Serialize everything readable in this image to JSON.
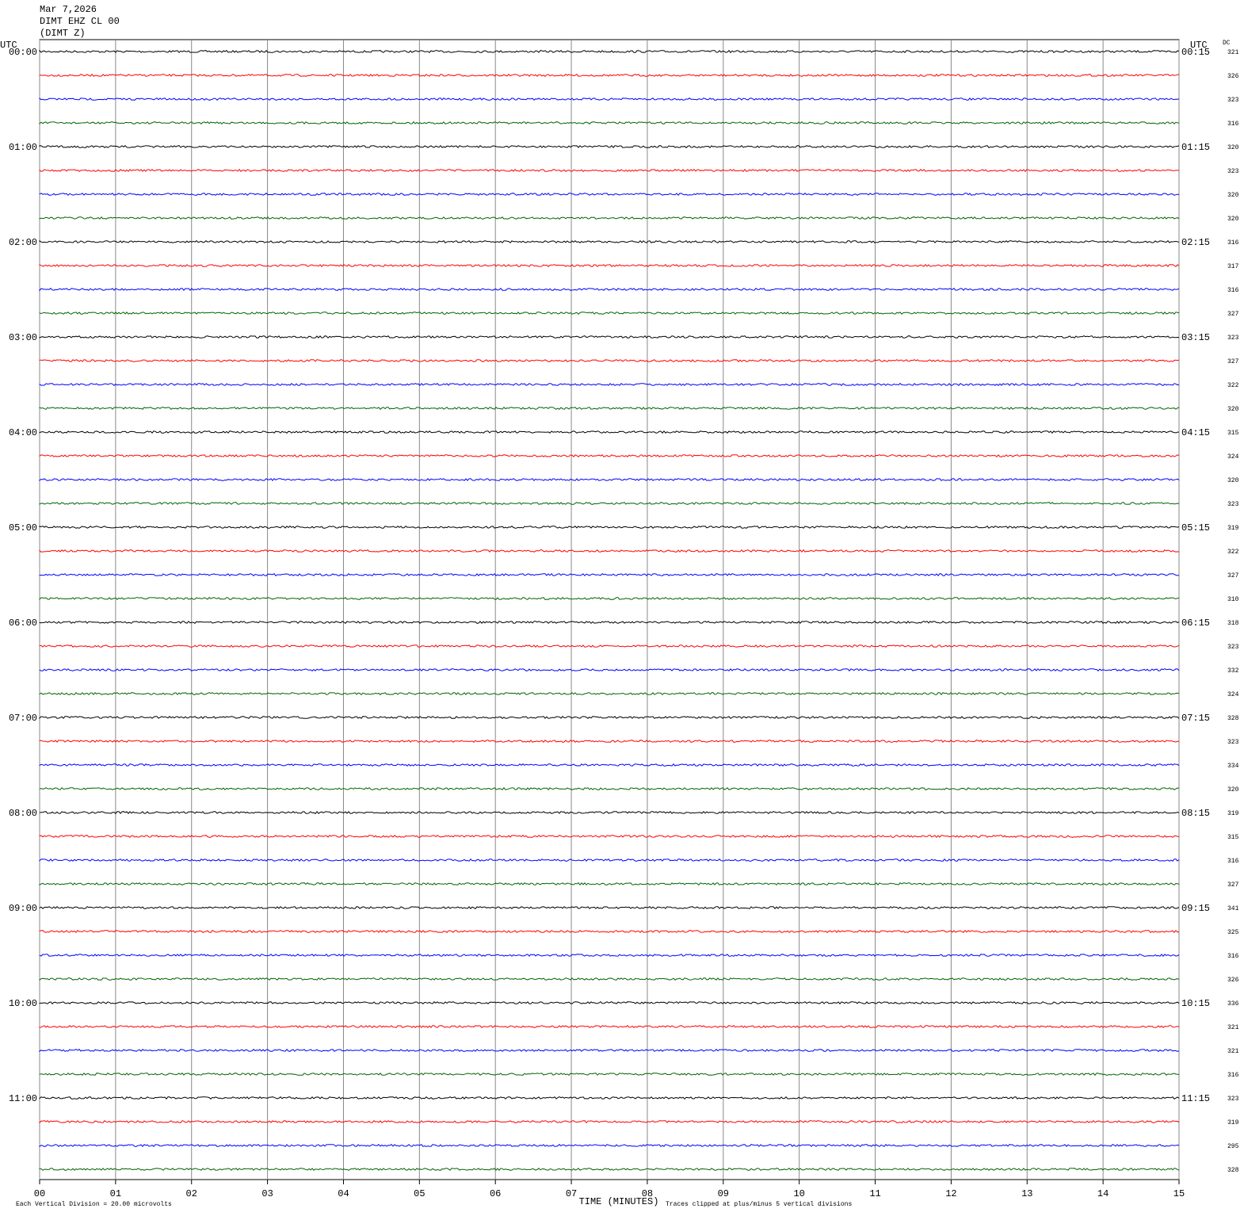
{
  "chart_data": {
    "type": "helicorder",
    "header": [
      "Mar 7,2026",
      "DIMT EHZ CL 00",
      "(DIMT Z)"
    ],
    "left_axis_label": "UTC",
    "right_axis_label": "UTC",
    "dc_label": "DC",
    "xlabel": "TIME (MINUTES)",
    "scale_note": "Each Vertical Division =   20.00 microvolts",
    "clip_note": "Traces clipped at plus/minus 5 vertical divisions",
    "xlim": [
      0,
      15
    ],
    "xticks": [
      {
        "value": 0,
        "label": "00"
      },
      {
        "value": 1,
        "label": "01"
      },
      {
        "value": 2,
        "label": "02"
      },
      {
        "value": 3,
        "label": "03"
      },
      {
        "value": 4,
        "label": "04"
      },
      {
        "value": 5,
        "label": "05"
      },
      {
        "value": 6,
        "label": "06"
      },
      {
        "value": 7,
        "label": "07"
      },
      {
        "value": 8,
        "label": "08"
      },
      {
        "value": 9,
        "label": "09"
      },
      {
        "value": 10,
        "label": "10"
      },
      {
        "value": 11,
        "label": "11"
      },
      {
        "value": 12,
        "label": "12"
      },
      {
        "value": 13,
        "label": "13"
      },
      {
        "value": 14,
        "label": "14"
      },
      {
        "value": 15,
        "label": "15"
      }
    ],
    "grid": true,
    "trace_colors": [
      "#000000",
      "#ff0000",
      "#0000ff",
      "#006400"
    ],
    "start_times": [
      "00:00",
      null,
      null,
      null,
      "01:00",
      null,
      null,
      null,
      "02:00",
      null,
      null,
      null,
      "03:00",
      null,
      null,
      null,
      "04:00",
      null,
      null,
      null,
      "05:00",
      null,
      null,
      null,
      "06:00",
      null,
      null,
      null,
      "07:00",
      null,
      null,
      null,
      "08:00",
      null,
      null,
      null,
      "09:00",
      null,
      null,
      null,
      "10:00",
      null,
      null,
      null,
      "11:00",
      null,
      null,
      null
    ],
    "end_times": [
      "00:15",
      null,
      null,
      null,
      "01:15",
      null,
      null,
      null,
      "02:15",
      null,
      null,
      null,
      "03:15",
      null,
      null,
      null,
      "04:15",
      null,
      null,
      null,
      "05:15",
      null,
      null,
      null,
      "06:15",
      null,
      null,
      null,
      "07:15",
      null,
      null,
      null,
      "08:15",
      null,
      null,
      null,
      "09:15",
      null,
      null,
      null,
      "10:15",
      null,
      null,
      null,
      "11:15",
      null,
      null,
      null
    ],
    "dc": [
      321,
      326,
      323,
      316,
      320,
      323,
      320,
      320,
      316,
      317,
      316,
      327,
      323,
      327,
      322,
      320,
      315,
      324,
      320,
      323,
      319,
      322,
      327,
      310,
      318,
      323,
      332,
      324,
      328,
      323,
      334,
      320,
      319,
      315,
      316,
      327,
      341,
      325,
      316,
      326,
      336,
      321,
      321,
      316,
      323,
      319,
      295,
      328
    ]
  }
}
